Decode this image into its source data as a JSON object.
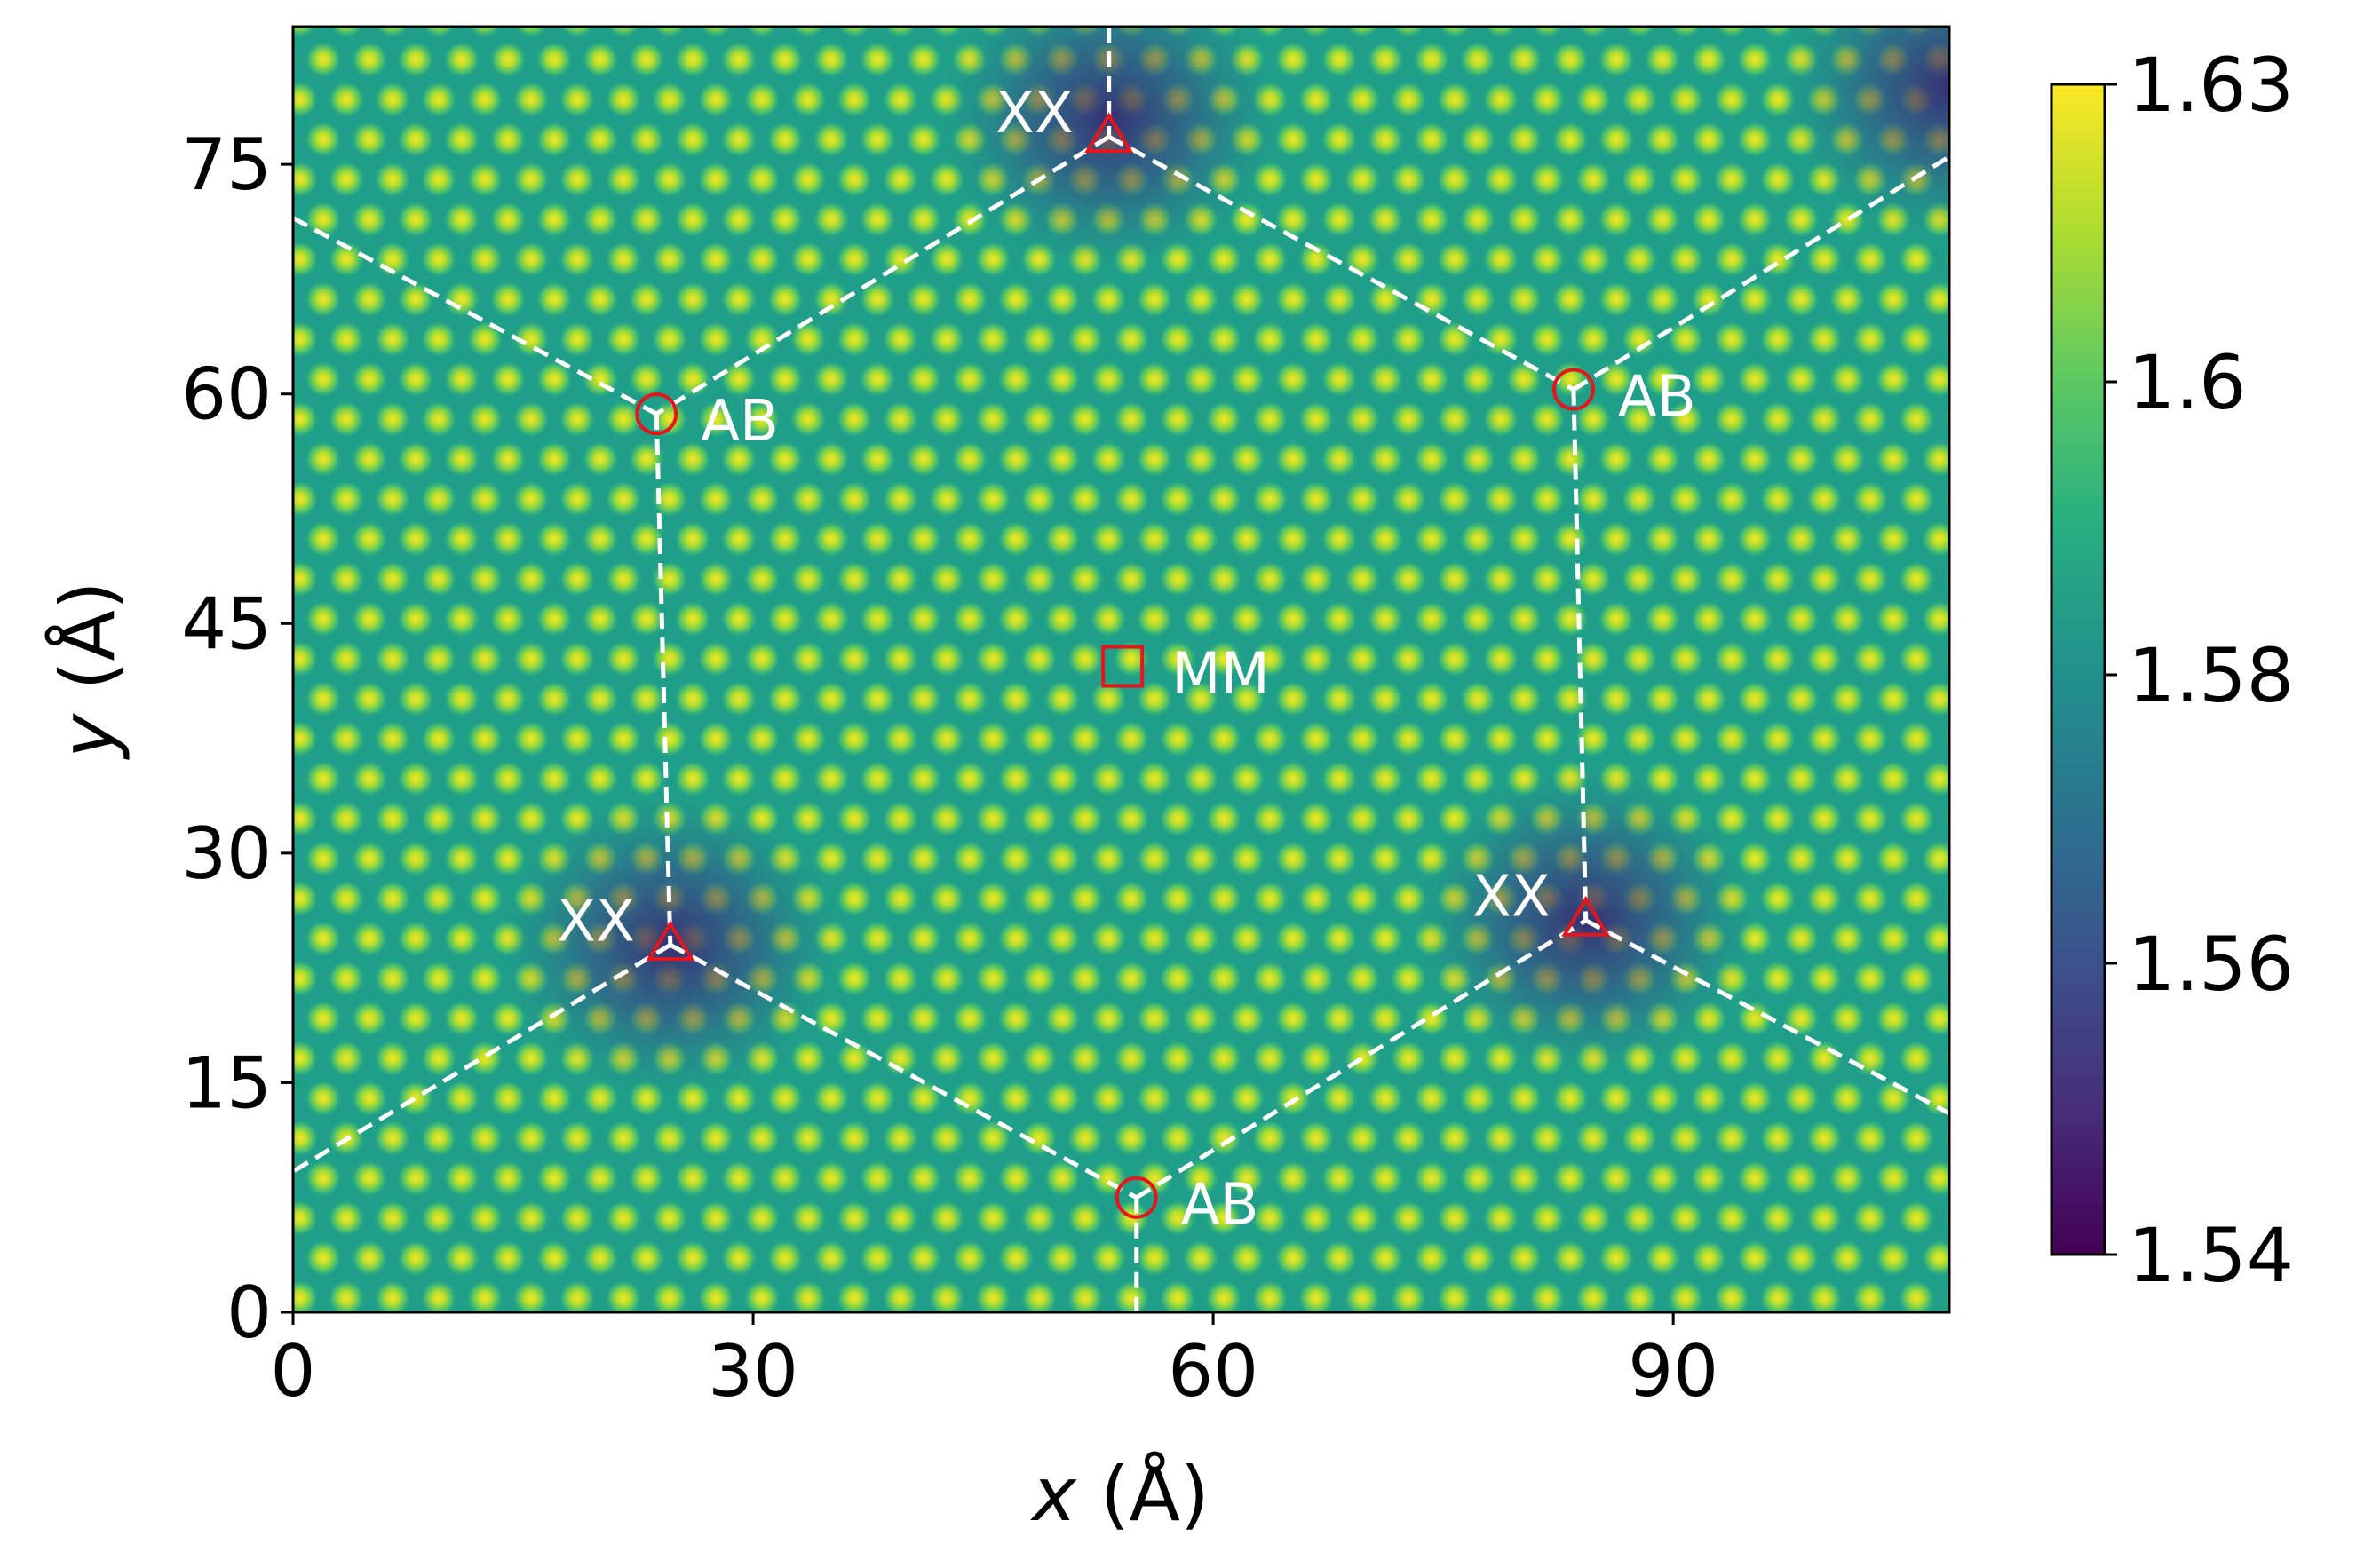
{
  "chart_data": {
    "type": "heatmap",
    "title": "",
    "xlabel_var": "x",
    "xlabel_unit": "(Å)",
    "ylabel_var": "y",
    "ylabel_unit": "(Å)",
    "xlim": [
      0,
      108
    ],
    "ylim": [
      0,
      84
    ],
    "xticks": [
      0,
      30,
      60,
      90
    ],
    "yticks": [
      0,
      15,
      30,
      45,
      60,
      75
    ],
    "xtick_labels": [
      "0",
      "30",
      "60",
      "90"
    ],
    "ytick_labels": [
      "0",
      "15",
      "30",
      "45",
      "60",
      "75"
    ],
    "colormap": "viridis",
    "colorbar": {
      "min": 1.54,
      "max": 1.63,
      "ticks": [
        1.54,
        1.56,
        1.58,
        1.6,
        1.63
      ],
      "tick_labels": [
        "1.54",
        "1.56",
        "1.58",
        "1.6",
        "1.63"
      ]
    },
    "sites": [
      {
        "label": "XX",
        "marker": "triangle",
        "x": 53.2,
        "y": 76.8
      },
      {
        "label": "AB",
        "marker": "circle",
        "x": 23.7,
        "y": 58.7
      },
      {
        "label": "AB",
        "marker": "circle",
        "x": 83.5,
        "y": 60.3
      },
      {
        "label": "MM",
        "marker": "square",
        "x": 54.1,
        "y": 42.2
      },
      {
        "label": "XX",
        "marker": "triangle",
        "x": 24.6,
        "y": 24.0
      },
      {
        "label": "XX",
        "marker": "triangle",
        "x": 84.3,
        "y": 25.6
      },
      {
        "label": "AB",
        "marker": "circle",
        "x": 55.0,
        "y": 7.5
      }
    ],
    "boundary_lines": [
      [
        [
          53.2,
          84
        ],
        [
          53.2,
          76.8
        ]
      ],
      [
        [
          53.2,
          76.8
        ],
        [
          23.7,
          58.7
        ]
      ],
      [
        [
          53.2,
          76.8
        ],
        [
          83.5,
          60.3
        ]
      ],
      [
        [
          0,
          71.5
        ],
        [
          23.7,
          58.7
        ]
      ],
      [
        [
          83.5,
          60.3
        ],
        [
          108,
          75.5
        ]
      ],
      [
        [
          23.7,
          58.7
        ],
        [
          24.6,
          24.0
        ]
      ],
      [
        [
          83.5,
          60.3
        ],
        [
          84.3,
          25.6
        ]
      ],
      [
        [
          24.6,
          24.0
        ],
        [
          0,
          9.2
        ]
      ],
      [
        [
          24.6,
          24.0
        ],
        [
          55.0,
          7.5
        ]
      ],
      [
        [
          55.0,
          7.5
        ],
        [
          84.3,
          25.6
        ]
      ],
      [
        [
          84.3,
          25.6
        ],
        [
          108,
          13.0
        ]
      ],
      [
        [
          55.0,
          7.5
        ],
        [
          55.0,
          0
        ]
      ]
    ],
    "dark_regions": [
      {
        "x": 53.2,
        "y": 78
      },
      {
        "x": 24.6,
        "y": 24.0
      },
      {
        "x": 84.3,
        "y": 25.6
      },
      {
        "x": 108,
        "y": 80
      }
    ]
  }
}
